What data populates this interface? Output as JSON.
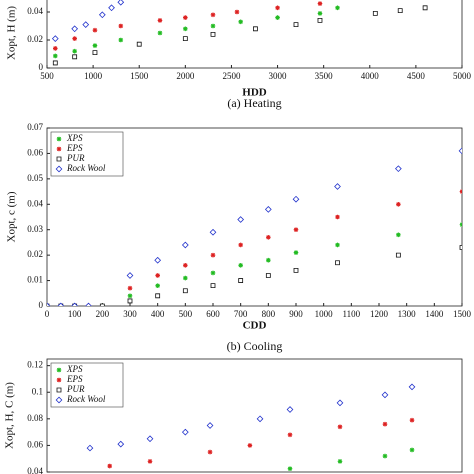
{
  "chart_data": [
    {
      "type": "scatter",
      "title": "(a) Heating",
      "xlabel": "HDD",
      "ylabel": "Xopt, H (m)",
      "xlim": [
        500,
        5000
      ],
      "xticks": [
        500,
        1000,
        1500,
        2000,
        2500,
        3000,
        3500,
        4000,
        4500,
        5000
      ],
      "ylim": [
        0,
        0.05
      ],
      "yticks": [
        0,
        0.02,
        0.04
      ],
      "series": [
        {
          "color": "#22bb22",
          "marker": "star",
          "x": [
            590,
            800,
            1020,
            1300,
            1725,
            2000,
            2300,
            2600,
            3000,
            3460,
            3650
          ],
          "values": [
            0.0086,
            0.012,
            0.016,
            0.02,
            0.025,
            0.028,
            0.03,
            0.033,
            0.036,
            0.039,
            0.043
          ]
        },
        {
          "color": "#dd2222",
          "marker": "star",
          "x": [
            590,
            800,
            1020,
            1300,
            1725,
            2000,
            2300,
            2560,
            3000,
            3460
          ],
          "values": [
            0.014,
            0.021,
            0.027,
            0.03,
            0.034,
            0.036,
            0.038,
            0.04,
            0.043,
            0.046
          ]
        },
        {
          "color": "#111111",
          "marker": "square",
          "x": [
            590,
            800,
            1020,
            1500,
            2000,
            2300,
            2760,
            3200,
            3460,
            4060,
            4330,
            4600
          ],
          "values": [
            0.0036,
            0.008,
            0.011,
            0.017,
            0.021,
            0.024,
            0.028,
            0.031,
            0.034,
            0.039,
            0.041,
            0.043
          ]
        },
        {
          "color": "#2233cc",
          "marker": "diamond",
          "x": [
            590,
            800,
            920,
            1100,
            1200,
            1300
          ],
          "values": [
            0.021,
            0.028,
            0.031,
            0.038,
            0.043,
            0.047
          ]
        }
      ]
    },
    {
      "type": "scatter",
      "title": "(b) Cooling",
      "xlabel": "CDD",
      "ylabel": "Xopt, c (m)",
      "xlim": [
        0,
        1500
      ],
      "xticks": [
        0,
        100,
        200,
        300,
        400,
        500,
        600,
        700,
        800,
        900,
        1000,
        1100,
        1200,
        1300,
        1400,
        1500
      ],
      "ylim": [
        0,
        0.07
      ],
      "yticks": [
        0,
        0.01,
        0.02,
        0.03,
        0.04,
        0.05,
        0.06,
        0.07
      ],
      "legend": "upper left",
      "series": [
        {
          "name": "XPS",
          "color": "#22bb22",
          "marker": "star",
          "x": [
            0,
            50,
            100,
            200,
            300,
            400,
            500,
            600,
            700,
            800,
            900,
            1050,
            1270,
            1500
          ],
          "values": [
            0,
            0,
            0,
            0,
            0.004,
            0.008,
            0.011,
            0.013,
            0.016,
            0.018,
            0.021,
            0.024,
            0.028,
            0.032
          ]
        },
        {
          "name": "EPS",
          "color": "#dd2222",
          "marker": "star",
          "x": [
            0,
            50,
            100,
            150,
            300,
            400,
            500,
            600,
            700,
            800,
            900,
            1050,
            1270,
            1500
          ],
          "values": [
            0,
            0,
            0,
            0,
            0.007,
            0.012,
            0.016,
            0.02,
            0.024,
            0.027,
            0.03,
            0.035,
            0.04,
            0.045
          ]
        },
        {
          "name": "PUR",
          "color": "#111111",
          "marker": "square",
          "x": [
            0,
            50,
            100,
            200,
            300,
            400,
            500,
            600,
            700,
            800,
            900,
            1050,
            1270,
            1500
          ],
          "values": [
            0,
            0,
            0,
            0,
            0.002,
            0.004,
            0.006,
            0.008,
            0.01,
            0.012,
            0.014,
            0.017,
            0.02,
            0.023
          ]
        },
        {
          "name": "Rock Wool",
          "color": "#2233cc",
          "marker": "diamond",
          "x": [
            0,
            50,
            100,
            150,
            300,
            400,
            500,
            600,
            700,
            800,
            900,
            1050,
            1270,
            1500
          ],
          "values": [
            0,
            0,
            0,
            0,
            0.012,
            0.018,
            0.024,
            0.029,
            0.034,
            0.038,
            0.042,
            0.047,
            0.054,
            0.061
          ]
        }
      ]
    },
    {
      "type": "scatter",
      "ylabel": "Xopt, H, C (m)",
      "xlim": [
        500,
        5000
      ],
      "ylim": [
        0.04,
        0.125
      ],
      "yticks": [
        0.04,
        0.06,
        0.08,
        0.1,
        0.12
      ],
      "legend": "upper left",
      "series": [
        {
          "name": "XPS",
          "color": "#22bb22",
          "marker": "star",
          "x": [
            3135,
            3677,
            4165,
            4458
          ],
          "values": [
            0.0425,
            0.048,
            0.052,
            0.0566
          ]
        },
        {
          "name": "EPS",
          "color": "#dd2222",
          "marker": "star",
          "x": [
            1180,
            1617,
            2268,
            2700,
            3135,
            3677,
            4165,
            4458
          ],
          "values": [
            0.0445,
            0.048,
            0.055,
            0.06,
            0.068,
            0.074,
            0.076,
            0.079
          ]
        },
        {
          "name": "PUR",
          "color": "#111111",
          "marker": "square",
          "x": [],
          "values": []
        },
        {
          "name": "Rock Wool",
          "color": "#2233cc",
          "marker": "diamond",
          "x": [
            966,
            1300,
            1617,
            2000,
            2268,
            2810,
            3135,
            3677,
            4165,
            4458
          ],
          "values": [
            0.058,
            0.061,
            0.065,
            0.07,
            0.075,
            0.08,
            0.087,
            0.092,
            0.098,
            0.104
          ]
        }
      ]
    }
  ]
}
